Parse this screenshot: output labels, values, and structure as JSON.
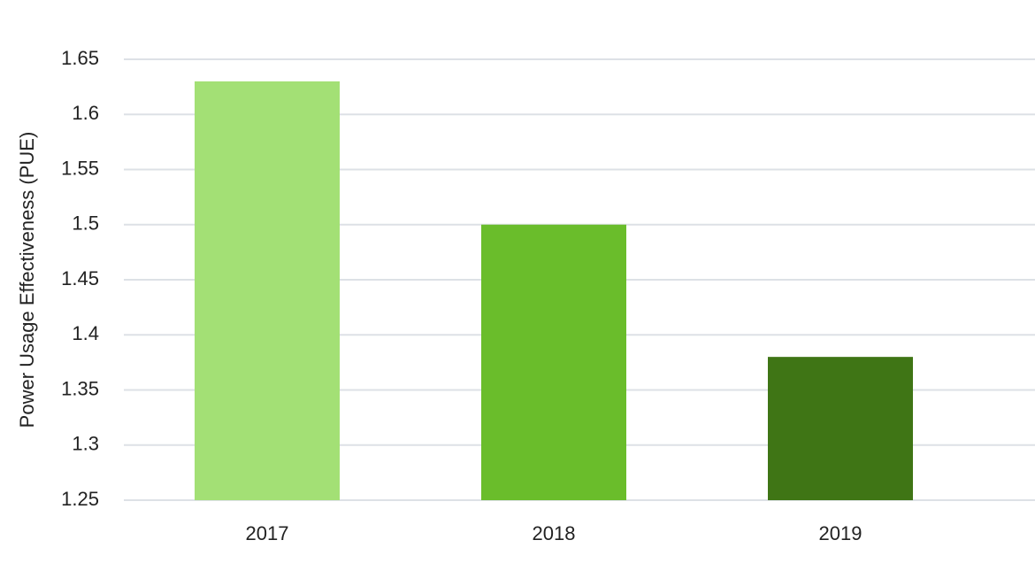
{
  "chart_data": {
    "type": "bar",
    "y_axis_label": "Power Usage Effectiveness (PUE)",
    "categories": [
      "2017",
      "2018",
      "2019"
    ],
    "values": [
      1.63,
      1.5,
      1.38
    ],
    "colors": [
      "#a3e075",
      "#6abd2b",
      "#3f7515"
    ],
    "ylim": [
      1.25,
      1.65
    ],
    "yticks": [
      1.25,
      1.3,
      1.35,
      1.4,
      1.45,
      1.5,
      1.55,
      1.6,
      1.65
    ],
    "grid": true
  }
}
